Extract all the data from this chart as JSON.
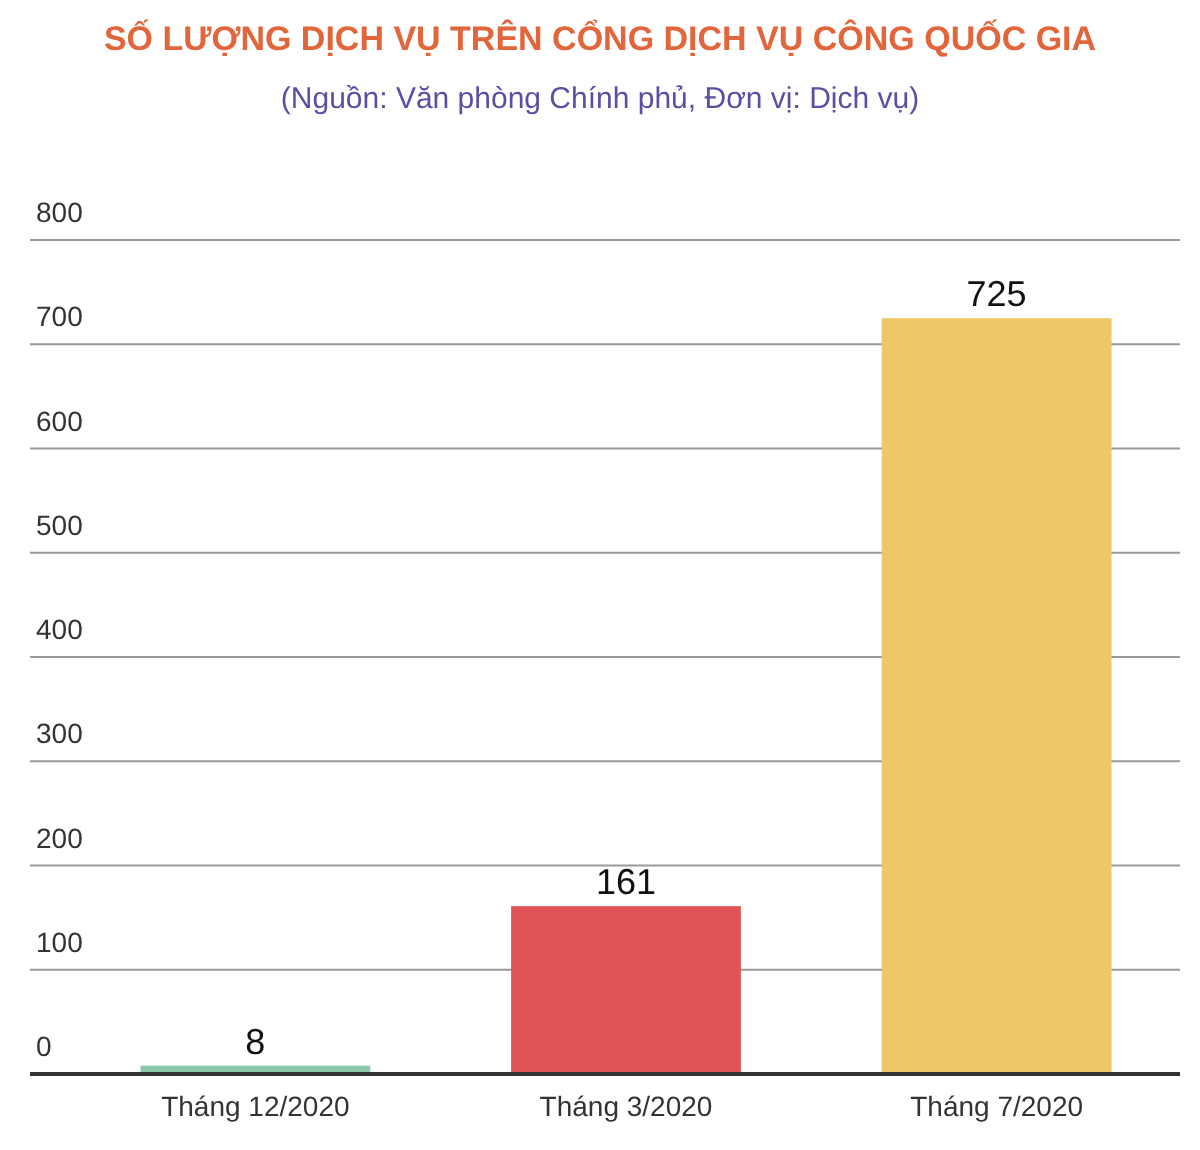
{
  "chart_data": {
    "type": "bar",
    "title": "SỐ LƯỢNG DỊCH VỤ TRÊN CỔNG DỊCH VỤ CÔNG QUỐC GIA",
    "subtitle": "(Nguồn: Văn phòng Chính phủ, Đơn vị: Dịch vụ)",
    "categories": [
      "Tháng 12/2020",
      "Tháng 3/2020",
      "Tháng 7/2020"
    ],
    "values": [
      8,
      161,
      725
    ],
    "colors": [
      "#8cc7a8",
      "#e05356",
      "#eec868"
    ],
    "data_labels": true,
    "ylim": [
      0,
      800
    ],
    "yticks": [
      0,
      100,
      200,
      300,
      400,
      500,
      600,
      700,
      800
    ],
    "grid": "y"
  }
}
